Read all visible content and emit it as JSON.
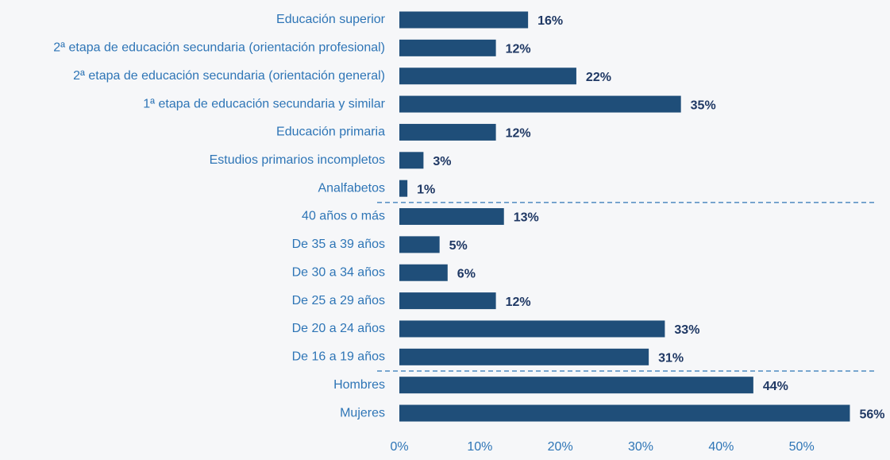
{
  "chart_data": {
    "type": "barh",
    "categories": [
      "Educación superior",
      "2ª etapa de educación secundaria (orientación profesional)",
      "2ª etapa de educación secundaria (orientación general)",
      "1ª etapa de educación secundaria y similar",
      "Educación primaria",
      "Estudios primarios incompletos",
      "Analfabetos",
      "40 años o más",
      "De 35 a 39 años",
      "De 30 a 34 años",
      "De 25 a 29 años",
      "De 20 a 24 años",
      "De 16 a 19 años",
      "Hombres",
      "Mujeres"
    ],
    "values": [
      16,
      12,
      22,
      35,
      12,
      3,
      1,
      13,
      5,
      6,
      12,
      33,
      31,
      44,
      56
    ],
    "value_labels": [
      "16%",
      "12%",
      "22%",
      "35%",
      "12%",
      "3%",
      "1%",
      "13%",
      "5%",
      "6%",
      "12%",
      "33%",
      "31%",
      "44%",
      "56%"
    ],
    "color": "#1f4e79",
    "xlim": [
      0,
      60
    ],
    "xticks": [
      {
        "value": 0,
        "label": "0%"
      },
      {
        "value": 10,
        "label": "10%"
      },
      {
        "value": 20,
        "label": "20%"
      },
      {
        "value": 30,
        "label": "30%"
      },
      {
        "value": 40,
        "label": "40%"
      },
      {
        "value": 50,
        "label": "50%"
      }
    ],
    "grid": false
  }
}
